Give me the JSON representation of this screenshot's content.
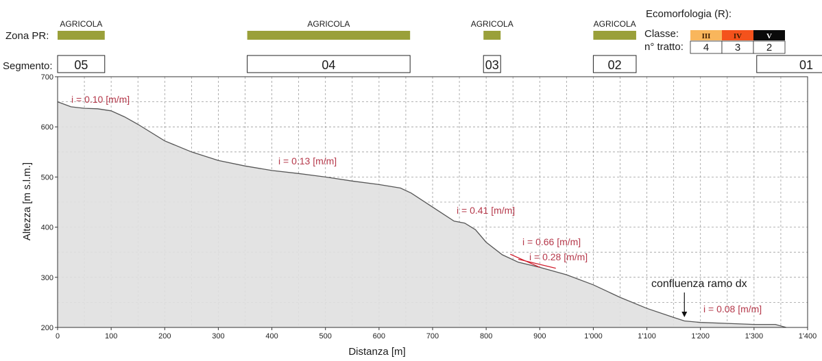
{
  "chart_data": {
    "type": "area",
    "xlabel": "Distanza [m]",
    "ylabel": "Altezza [m s.l.m.]",
    "xlim": [
      0,
      1400
    ],
    "ylim": [
      200,
      700
    ],
    "x_ticks": [
      0,
      100,
      200,
      300,
      400,
      500,
      600,
      700,
      800,
      900,
      1000,
      1100,
      1200,
      1300,
      1400
    ],
    "x_tick_labels": [
      "0",
      "100",
      "200",
      "300",
      "400",
      "500",
      "600",
      "700",
      "800",
      "900",
      "1'000",
      "1'100",
      "1'200",
      "1'300",
      "1'400"
    ],
    "y_ticks": [
      200,
      300,
      400,
      500,
      600,
      700
    ],
    "y_tick_labels": [
      "200",
      "300",
      "400",
      "500",
      "600",
      "700"
    ],
    "grid": true,
    "profile": {
      "x": [
        0,
        10,
        25,
        50,
        75,
        100,
        125,
        150,
        200,
        250,
        300,
        350,
        400,
        450,
        500,
        550,
        600,
        640,
        660,
        700,
        740,
        760,
        780,
        800,
        830,
        860,
        900,
        950,
        1000,
        1050,
        1100,
        1150,
        1170,
        1200,
        1250,
        1300,
        1340,
        1360
      ],
      "y": [
        650,
        646,
        640,
        637,
        636,
        632,
        620,
        605,
        572,
        550,
        533,
        522,
        513,
        507,
        500,
        492,
        485,
        478,
        468,
        440,
        412,
        408,
        395,
        370,
        345,
        330,
        320,
        305,
        285,
        260,
        238,
        220,
        213,
        210,
        208,
        206,
        206,
        200
      ]
    },
    "slope_annotations": [
      "i = 0.10 [m/m]",
      "i = 0.13 [m/m]",
      "i = 0.41 [m/m]",
      "i = 0.66 [m/m]",
      "i = 0.28 [m/m]",
      "i = 0.08 [m/m]"
    ],
    "slope_segments": [
      {
        "x": [
          845,
          900
        ],
        "y": [
          346,
          320
        ]
      },
      {
        "x": [
          860,
          930
        ],
        "y": [
          336,
          318
        ]
      }
    ],
    "confluence": {
      "label": "confluenza ramo dx",
      "x": 1170
    },
    "zona_pr": {
      "label": "Zona PR:",
      "bands": [
        {
          "label": "AGRICOLA",
          "x": [
            0,
            88
          ]
        },
        {
          "label": "AGRICOLA",
          "x": [
            354,
            658
          ]
        },
        {
          "label": "AGRICOLA",
          "x": [
            795,
            827
          ]
        },
        {
          "label": "AGRICOLA",
          "x": [
            1000,
            1080
          ]
        }
      ]
    },
    "segments": {
      "label": "Segmento:",
      "items": [
        {
          "label": "05",
          "x": [
            0,
            88
          ]
        },
        {
          "label": "04",
          "x": [
            354,
            658
          ]
        },
        {
          "label": "03",
          "x": [
            795,
            827
          ]
        },
        {
          "label": "02",
          "x": [
            1000,
            1080
          ]
        },
        {
          "label": "01",
          "x": [
            1305,
            1490
          ]
        }
      ]
    },
    "ecomorfologia": {
      "title": "Ecomorfologia (R):",
      "classe_label": "Classe:",
      "tratto_label": "n° tratto:",
      "classes": [
        {
          "classe": "III",
          "tratto": "4",
          "color": "#f9b65c"
        },
        {
          "classe": "IV",
          "tratto": "3",
          "color": "#f4521c"
        },
        {
          "classe": "V",
          "tratto": "2",
          "color": "#0a0a0a"
        }
      ]
    },
    "colors": {
      "area_fill": "#e0e0e0",
      "profile_line": "#555555",
      "zona_band": "#9aa03a",
      "annotation": "#b5384a",
      "slope_line": "#d01f2e"
    }
  }
}
